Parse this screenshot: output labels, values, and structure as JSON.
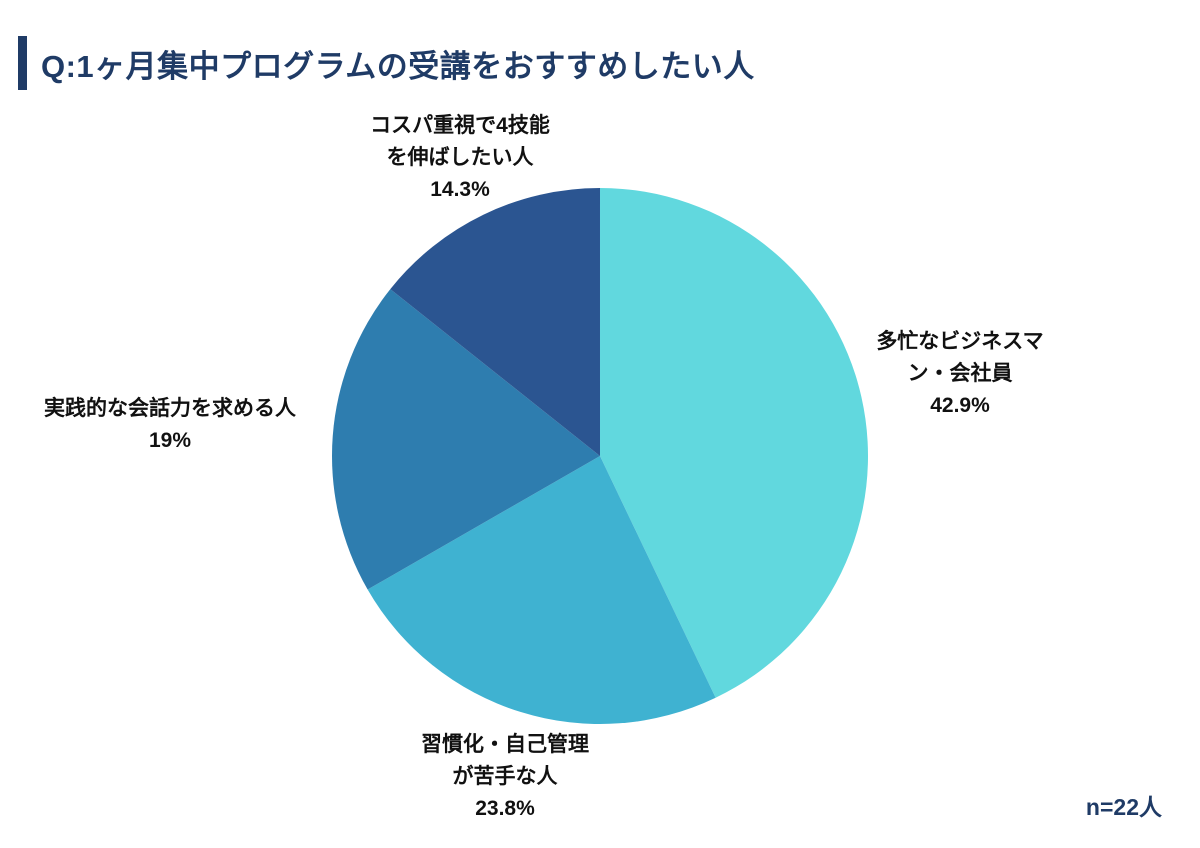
{
  "page": {
    "background": "#ffffff"
  },
  "header": {
    "title": "Q:1ヶ月集中プログラムの受講をおすすめしたい人",
    "accent_color": "#1f3b66",
    "text_color": "#1f3b66"
  },
  "footer": {
    "sample_size": "n=22人"
  },
  "chart_data": {
    "type": "pie",
    "title": "Q:1ヶ月集中プログラムの受講をおすすめしたい人",
    "unit": "%",
    "sample_size_text": "n=22人",
    "start_angle": "top",
    "direction": "clockwise",
    "legend": "none",
    "slices": [
      {
        "id": "busy-businessman",
        "label": "多忙なビジネスマン・会社員",
        "value": 42.9,
        "percent_text": "42.9%",
        "color": "#61d8de",
        "label_lines": [
          "多忙なビジネスマ",
          "ン・会社員",
          "42.9%"
        ]
      },
      {
        "id": "poor-self-management",
        "label": "習慣化・自己管理が苦手な人",
        "value": 23.8,
        "percent_text": "23.8%",
        "color": "#3fb2d1",
        "label_lines": [
          "習慣化・自己管理",
          "が苦手な人",
          "23.8%"
        ]
      },
      {
        "id": "practical-conversation",
        "label": "実践的な会話力を求める人",
        "value": 19,
        "percent_text": "19%",
        "color": "#2e7daf",
        "label_lines": [
          "実践的な会話力を求める人",
          "19%"
        ]
      },
      {
        "id": "cost-performance-4skills",
        "label": "コスパ重視で4技能を伸ばしたい人",
        "value": 14.3,
        "percent_text": "14.3%",
        "color": "#2b5591",
        "label_lines": [
          "コスパ重視で4技能",
          "を伸ばしたい人",
          "14.3%"
        ]
      }
    ]
  }
}
